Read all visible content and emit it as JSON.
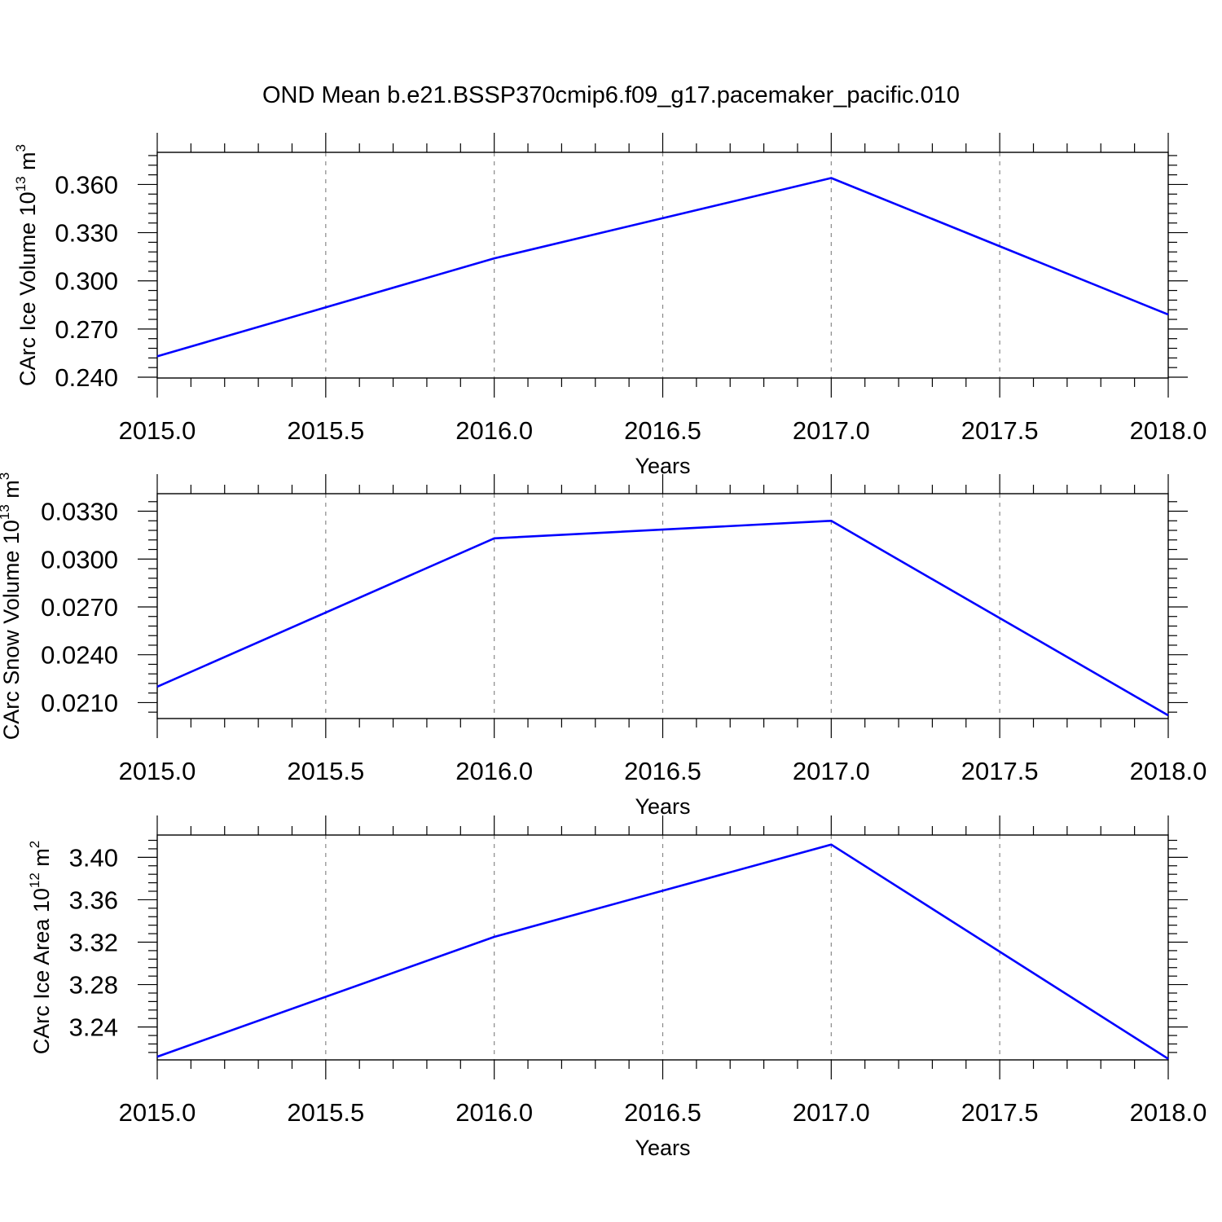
{
  "title": "OND Mean b.e21.BSSP370cmip6.f09_g17.pacemaker_pacific.010",
  "colors": {
    "line": "#0000ff",
    "axis": "#000000",
    "grid": "#888888"
  },
  "chart_data": [
    {
      "type": "line",
      "xlabel": "Years",
      "ylabel": "CArc Ice Volume 10",
      "ylabel_exp": "13",
      "ylabel_unit": " m",
      "ylabel_unit_exp": "3",
      "xlim": [
        2015.0,
        2018.0
      ],
      "ylim": [
        0.2395,
        0.38
      ],
      "xticks": [
        "2015.0",
        "2015.5",
        "2016.0",
        "2016.5",
        "2017.0",
        "2017.5",
        "2018.0"
      ],
      "yticks": [
        "0.240",
        "0.270",
        "0.300",
        "0.330",
        "0.360"
      ],
      "x": [
        2015,
        2016,
        2017,
        2018
      ],
      "y": [
        0.253,
        0.314,
        0.364,
        0.279
      ],
      "grid": "vertical dashed"
    },
    {
      "type": "line",
      "xlabel": "Years",
      "ylabel": "CArc Snow Volume 10",
      "ylabel_exp": "13",
      "ylabel_unit": " m",
      "ylabel_unit_exp": "3",
      "xlim": [
        2015.0,
        2018.0
      ],
      "ylim": [
        0.02,
        0.0341
      ],
      "xticks": [
        "2015.0",
        "2015.5",
        "2016.0",
        "2016.5",
        "2017.0",
        "2017.5",
        "2018.0"
      ],
      "yticks": [
        "0.0210",
        "0.0240",
        "0.0270",
        "0.0300",
        "0.0330"
      ],
      "x": [
        2015,
        2016,
        2017,
        2018
      ],
      "y": [
        0.022,
        0.0313,
        0.0324,
        0.0202
      ],
      "grid": "vertical dashed"
    },
    {
      "type": "line",
      "xlabel": "Years",
      "ylabel": "CArc Ice Area 10",
      "ylabel_exp": "12",
      "ylabel_unit": " m",
      "ylabel_unit_exp": "2",
      "xlim": [
        2015.0,
        2018.0
      ],
      "ylim": [
        3.209,
        3.421
      ],
      "xticks": [
        "2015.0",
        "2015.5",
        "2016.0",
        "2016.5",
        "2017.0",
        "2017.5",
        "2018.0"
      ],
      "yticks": [
        "3.24",
        "3.28",
        "3.32",
        "3.36",
        "3.40"
      ],
      "x": [
        2015,
        2016,
        2017,
        2018
      ],
      "y": [
        3.212,
        3.325,
        3.412,
        3.21
      ],
      "grid": "vertical dashed"
    }
  ]
}
